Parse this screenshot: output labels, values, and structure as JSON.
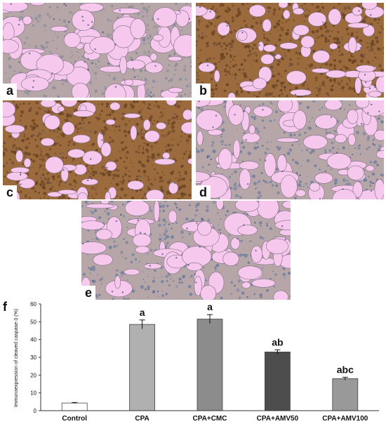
{
  "panels": [
    {
      "label": "a",
      "tissue": "light",
      "stain": "mild"
    },
    {
      "label": "b",
      "tissue": "dense",
      "stain": "strong"
    },
    {
      "label": "c",
      "tissue": "dense",
      "stain": "strong"
    },
    {
      "label": "d",
      "tissue": "light",
      "stain": "weak"
    },
    {
      "label": "e",
      "tissue": "light",
      "stain": "weak"
    }
  ],
  "colors": {
    "alveolus": "#f7c8ee",
    "strong_stain": "#6b4423",
    "mild_stain": "#8a8f9a",
    "weak_stain": "#6f7fa0"
  },
  "chart_data": {
    "type": "bar",
    "panel_label": "f",
    "ylabel": "Immunoexpression of cleaved caspase-3 (%)",
    "ylim": [
      0,
      60
    ],
    "yticks": [
      0,
      10,
      20,
      30,
      40,
      50,
      60
    ],
    "categories": [
      "Control",
      "CPA",
      "CPA+CMC",
      "CPA+AMV50",
      "CPA+AMV100"
    ],
    "values": [
      4.3,
      48.5,
      51.5,
      33.0,
      18.0
    ],
    "errors": [
      0.3,
      2.5,
      2.5,
      1.2,
      0.8
    ],
    "annotations": [
      "",
      "a",
      "a",
      "ab",
      "abc"
    ],
    "bar_colors": [
      "#ffffff",
      "#b0b0b0",
      "#8c8c8c",
      "#4d4d4d",
      "#999999"
    ]
  }
}
